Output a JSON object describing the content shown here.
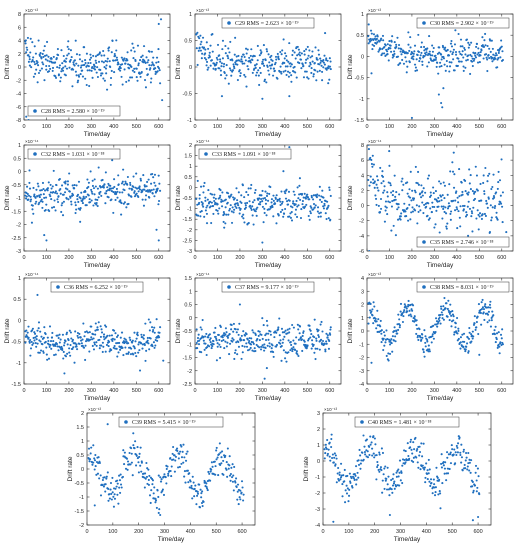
{
  "figure": {
    "xlabel": "Time/day",
    "ylabel": "Drift rate",
    "marker_color": "#1f6fbf",
    "legend_marker": "dot"
  },
  "chart_data": [
    {
      "type": "scatter",
      "name": "C28",
      "title": "",
      "exponent": "×10⁻¹³",
      "legend": "C28 RMS = 2.580 × 10⁻¹⁹",
      "legend_pos": "bottom-left",
      "xlim": [
        0,
        650
      ],
      "ylim": [
        -8,
        8
      ],
      "xticks": [
        0,
        100,
        200,
        300,
        400,
        500,
        600
      ],
      "yticks": [
        -8,
        -6,
        -4,
        -2,
        0,
        2,
        4,
        6,
        8
      ],
      "pattern": {
        "kind": "decay",
        "base": 0.2,
        "amp": 4.5,
        "tau": 40,
        "noise": 1.4,
        "n": 330,
        "outliers": [
          [
            10,
            -7.5
          ],
          [
            20,
            -8
          ],
          [
            615,
            -5
          ],
          [
            40,
            -6.5
          ],
          [
            600,
            6.5
          ],
          [
            610,
            7.2
          ]
        ]
      }
    },
    {
      "type": "scatter",
      "name": "C29",
      "title": "",
      "exponent": "×10⁻¹³",
      "legend": "C29 RMS = 2.623 × 10⁻¹⁹",
      "legend_pos": "top-center",
      "xlim": [
        0,
        650
      ],
      "ylim": [
        -1,
        1
      ],
      "xticks": [
        0,
        100,
        200,
        300,
        400,
        500,
        600
      ],
      "yticks": [
        -1,
        -0.5,
        0,
        0.5,
        1
      ],
      "pattern": {
        "kind": "decay",
        "base": 0.05,
        "amp": 0.5,
        "tau": 60,
        "noise": 0.16,
        "n": 330,
        "outliers": [
          [
            120,
            -0.55
          ],
          [
            300,
            -0.6
          ],
          [
            420,
            -0.55
          ]
        ]
      }
    },
    {
      "type": "scatter",
      "name": "C30",
      "title": "",
      "exponent": "×10⁻¹³",
      "legend": "C30 RMS = 2.902 × 10⁻¹⁹",
      "legend_pos": "top-right",
      "xlim": [
        0,
        650
      ],
      "ylim": [
        -1.5,
        1
      ],
      "xticks": [
        0,
        100,
        200,
        300,
        400,
        500,
        600
      ],
      "yticks": [
        -1.5,
        -1,
        -0.5,
        0,
        0.5,
        1
      ],
      "pattern": {
        "kind": "decay",
        "base": 0.05,
        "amp": 0.6,
        "tau": 60,
        "noise": 0.18,
        "n": 330,
        "outliers": [
          [
            200,
            -1.45
          ],
          [
            320,
            -0.9
          ],
          [
            330,
            -1.1
          ],
          [
            335,
            -1.2
          ],
          [
            340,
            -0.75
          ],
          [
            20,
            -0.4
          ]
        ]
      }
    },
    {
      "type": "scatter",
      "name": "C32",
      "title": "",
      "exponent": "×10⁻¹⁴",
      "legend": "C32 RMS = 1.031 × 10⁻¹⁸",
      "legend_pos": "top-left",
      "xlim": [
        0,
        650
      ],
      "ylim": [
        -3,
        1
      ],
      "xticks": [
        0,
        100,
        200,
        300,
        400,
        500,
        600
      ],
      "yticks": [
        -3,
        -2.5,
        -2,
        -1.5,
        -1,
        -0.5,
        0,
        0.5,
        1
      ],
      "pattern": {
        "kind": "trend",
        "start": -1.0,
        "end": -0.6,
        "noise": 0.35,
        "n": 330,
        "outliers": [
          [
            90,
            -2.4
          ],
          [
            100,
            -2.6
          ],
          [
            600,
            -2.6
          ],
          [
            590,
            -2.2
          ],
          [
            250,
            -1.9
          ]
        ]
      }
    },
    {
      "type": "scatter",
      "name": "C33",
      "title": "",
      "exponent": "×10⁻¹⁴",
      "legend": "C33 RMS = 1.091 × 10⁻¹⁸",
      "legend_pos": "top-left",
      "xlim": [
        0,
        650
      ],
      "ylim": [
        -3,
        2
      ],
      "xticks": [
        0,
        100,
        200,
        300,
        400,
        500,
        600
      ],
      "yticks": [
        -3,
        -2.5,
        -2,
        -1.5,
        -1,
        -0.5,
        0,
        0.5,
        1,
        1.5,
        2
      ],
      "pattern": {
        "kind": "flat",
        "mean": -0.8,
        "noise": 0.4,
        "n": 330,
        "outliers": [
          [
            420,
            1.9
          ],
          [
            300,
            -2.6
          ],
          [
            130,
            -1.9
          ]
        ]
      }
    },
    {
      "type": "scatter",
      "name": "C35",
      "title": "",
      "exponent": "×10⁻¹⁴",
      "legend": "C35 RMS = 2.746 × 10⁻¹⁸",
      "legend_pos": "bottom-right",
      "xlim": [
        0,
        650
      ],
      "ylim": [
        -6,
        8
      ],
      "xticks": [
        0,
        100,
        200,
        300,
        400,
        500,
        600
      ],
      "yticks": [
        -6,
        -4,
        -2,
        0,
        2,
        4,
        6,
        8
      ],
      "pattern": {
        "kind": "decay",
        "base": 0.5,
        "amp": 3.5,
        "tau": 70,
        "noise": 2.0,
        "n": 330,
        "outliers": [
          [
            10,
            -6
          ],
          [
            450,
            -4
          ],
          [
            620,
            -3.5
          ]
        ]
      }
    },
    {
      "type": "scatter",
      "name": "C36",
      "title": "",
      "exponent": "×10⁻¹⁴",
      "legend": "C36 RMS = 6.252 × 10⁻¹⁹",
      "legend_pos": "top-center",
      "xlim": [
        0,
        650
      ],
      "ylim": [
        -1.5,
        1
      ],
      "xticks": [
        0,
        100,
        200,
        300,
        400,
        500,
        600
      ],
      "yticks": [
        -1.5,
        -1,
        -0.5,
        0,
        0.5,
        1
      ],
      "pattern": {
        "kind": "wave",
        "base": -0.5,
        "amp": 0.12,
        "period": 300,
        "noise": 0.18,
        "n": 330,
        "outliers": [
          [
            60,
            0.6
          ],
          [
            180,
            -1.25
          ],
          [
            620,
            -0.95
          ]
        ]
      }
    },
    {
      "type": "scatter",
      "name": "C37",
      "title": "",
      "exponent": "×10⁻¹⁴",
      "legend": "C37 RMS = 9.177 × 10⁻¹⁹",
      "legend_pos": "top-center",
      "xlim": [
        0,
        650
      ],
      "ylim": [
        -2.5,
        1.5
      ],
      "xticks": [
        0,
        100,
        200,
        300,
        400,
        500,
        600
      ],
      "yticks": [
        -2.5,
        -2,
        -1.5,
        -1,
        -0.5,
        0,
        0.5,
        1,
        1.5
      ],
      "pattern": {
        "kind": "flat",
        "mean": -0.85,
        "noise": 0.3,
        "n": 330,
        "outliers": [
          [
            150,
            1.2
          ],
          [
            200,
            0.5
          ],
          [
            310,
            -2.3
          ],
          [
            320,
            -1.9
          ]
        ]
      }
    },
    {
      "type": "scatter",
      "name": "C38",
      "title": "",
      "exponent": "×10⁻¹³",
      "legend": "C38 RMS = 8.031 × 10⁻¹⁹",
      "legend_pos": "top-right",
      "xlim": [
        0,
        650
      ],
      "ylim": [
        -4,
        4
      ],
      "xticks": [
        0,
        100,
        200,
        300,
        400,
        500,
        600
      ],
      "yticks": [
        -4,
        -3,
        -2,
        -1,
        0,
        1,
        2,
        3,
        4
      ],
      "pattern": {
        "kind": "wave",
        "base": 0.3,
        "amp": 1.4,
        "period": 170,
        "noise": 0.45,
        "n": 330,
        "outliers": [
          [
            20,
            -2.4
          ],
          [
            500,
            -1.8
          ]
        ]
      }
    },
    {
      "type": "scatter",
      "name": "C39",
      "title": "",
      "exponent": "×10⁻¹³",
      "legend": "C39 RMS = 5.415 × 10⁻¹⁹",
      "legend_pos": "top-center",
      "xlim": [
        0,
        650
      ],
      "ylim": [
        -2,
        2
      ],
      "xticks": [
        0,
        100,
        200,
        300,
        400,
        500,
        600
      ],
      "yticks": [
        -2,
        -1.5,
        -1,
        -0.5,
        0,
        0.5,
        1,
        1.5,
        2
      ],
      "pattern": {
        "kind": "wave",
        "base": -0.2,
        "amp": 0.7,
        "period": 170,
        "noise": 0.3,
        "n": 330,
        "outliers": [
          [
            80,
            1.6
          ],
          [
            30,
            -1.3
          ]
        ]
      }
    },
    {
      "type": "scatter",
      "name": "C40",
      "title": "",
      "exponent": "×10⁻¹³",
      "legend": "C40 RMS = 1.481 × 10⁻¹⁸",
      "legend_pos": "top-center",
      "xlim": [
        0,
        650
      ],
      "ylim": [
        -4,
        3
      ],
      "xticks": [
        0,
        100,
        200,
        300,
        400,
        500,
        600
      ],
      "yticks": [
        -4,
        -3,
        -2,
        -1,
        0,
        1,
        2,
        3
      ],
      "pattern": {
        "kind": "wave",
        "base": -0.4,
        "amp": 1.2,
        "period": 170,
        "noise": 0.55,
        "n": 330,
        "outliers": [
          [
            40,
            -3.8
          ],
          [
            600,
            -3.5
          ],
          [
            580,
            -3.7
          ]
        ]
      }
    }
  ]
}
